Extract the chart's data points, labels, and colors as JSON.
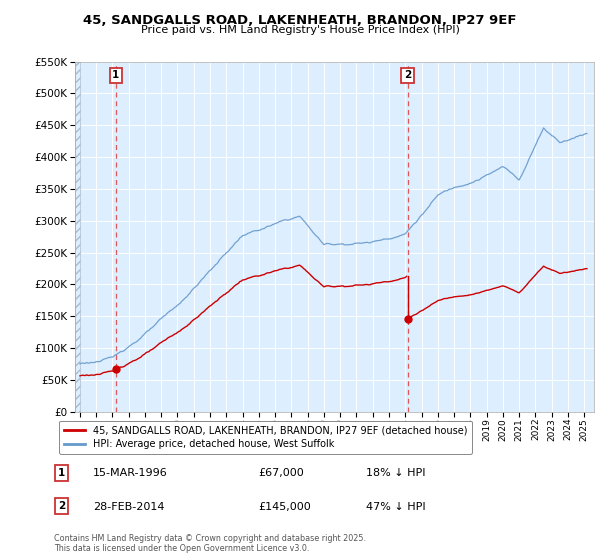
{
  "title": "45, SANDGALLS ROAD, LAKENHEATH, BRANDON, IP27 9EF",
  "subtitle": "Price paid vs. HM Land Registry's House Price Index (HPI)",
  "legend_line1": "45, SANDGALLS ROAD, LAKENHEATH, BRANDON, IP27 9EF (detached house)",
  "legend_line2": "HPI: Average price, detached house, West Suffolk",
  "footnote": "Contains HM Land Registry data © Crown copyright and database right 2025.\nThis data is licensed under the Open Government Licence v3.0.",
  "annotation1_date": "15-MAR-1996",
  "annotation1_price": "£67,000",
  "annotation1_hpi": "18% ↓ HPI",
  "annotation2_date": "28-FEB-2014",
  "annotation2_price": "£145,000",
  "annotation2_hpi": "47% ↓ HPI",
  "red_color": "#cc0000",
  "blue_color": "#6699cc",
  "plot_bg_color": "#ddeeff",
  "background_color": "#ffffff",
  "grid_color": "#ffffff",
  "ylim": [
    0,
    550000
  ],
  "yticks": [
    0,
    50000,
    100000,
    150000,
    200000,
    250000,
    300000,
    350000,
    400000,
    450000,
    500000,
    550000
  ],
  "sale1_x": 1996.21,
  "sale1_y": 67000,
  "sale2_x": 2014.15,
  "sale2_y": 145000,
  "vline1_x": 1996.21,
  "vline2_x": 2014.15,
  "xlim_left": 1993.7,
  "xlim_right": 2025.6
}
